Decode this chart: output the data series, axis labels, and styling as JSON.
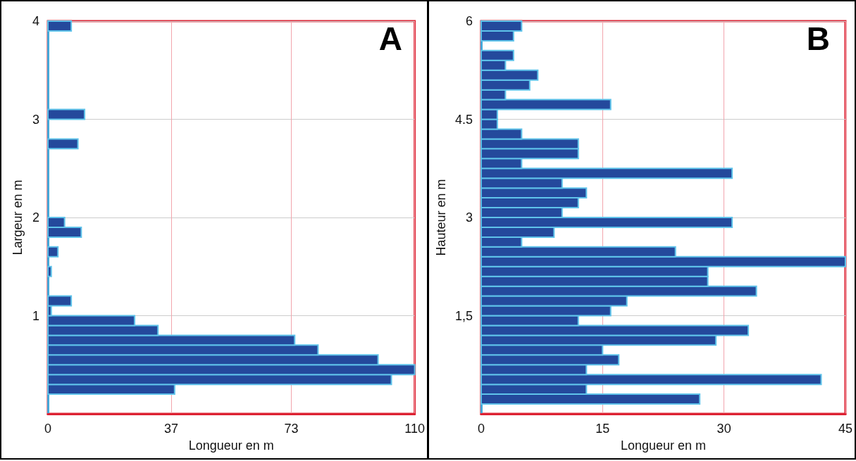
{
  "chart_data": [
    {
      "type": "histogram",
      "orientation": "horizontal",
      "xlabel": "Longueur en m",
      "ylabel": "Largeur en m",
      "annotations": [
        "A"
      ],
      "bins": [
        0,
        0.1,
        0.2,
        0.3,
        0.4,
        0.5,
        0.6,
        0.7,
        0.8,
        0.9,
        1,
        1.1,
        1.2,
        1.3,
        1.4,
        1.5,
        1.6,
        1.7,
        1.8,
        1.9,
        2,
        2.1,
        2.2,
        2.3,
        2.4,
        2.5,
        2.6,
        2.7,
        2.8,
        2.9,
        3,
        3.1,
        3.2,
        3.3,
        3.4,
        3.5,
        3.6,
        3.7,
        3.8,
        3.9,
        4
      ],
      "values": [
        0,
        0,
        38,
        103,
        110,
        99,
        81,
        74,
        33,
        26,
        1,
        7,
        0,
        0,
        1,
        0,
        3,
        0,
        10,
        5,
        0,
        0,
        0,
        0,
        0,
        0,
        0,
        9,
        0,
        0,
        11,
        0,
        0,
        0,
        0,
        0,
        0,
        0,
        0,
        7
      ],
      "color": "#24499c",
      "xlim": [
        0,
        110
      ],
      "xticks": [
        0,
        37,
        73,
        110
      ],
      "ylim": [
        0,
        4
      ],
      "yticks": [
        1,
        2,
        3,
        4
      ],
      "grid": true
    },
    {
      "type": "histogram",
      "orientation": "horizontal",
      "xlabel": "Longueur en m",
      "ylabel": "Hauteur en m",
      "annotations": [
        "B"
      ],
      "bins": [
        0,
        0.15,
        0.3,
        0.45,
        0.6,
        0.75,
        0.9,
        1.05,
        1.2,
        1.35,
        1.5,
        1.65,
        1.8,
        1.95,
        2.1,
        2.25,
        2.4,
        2.55,
        2.7,
        2.85,
        3,
        3.15,
        3.3,
        3.45,
        3.6,
        3.75,
        3.9,
        4.05,
        4.2,
        4.35,
        4.5,
        4.65,
        4.8,
        4.95,
        5.1,
        5.25,
        5.4,
        5.55,
        5.7,
        5.85,
        6
      ],
      "values": [
        0,
        27,
        13,
        42,
        13,
        17,
        15,
        29,
        33,
        12,
        16,
        18,
        34,
        28,
        28,
        45,
        24,
        5,
        9,
        31,
        10,
        12,
        13,
        10,
        31,
        5,
        12,
        12,
        5,
        2,
        2,
        16,
        3,
        6,
        7,
        3,
        4,
        0,
        4,
        5
      ],
      "color": "#24499c",
      "xlim": [
        0,
        45
      ],
      "xticks": [
        0,
        15,
        30,
        45
      ],
      "ylim": [
        0,
        6
      ],
      "yticks": [
        {
          "value": 1.5,
          "label": "1,5"
        },
        3,
        4.5,
        6
      ],
      "grid": true
    }
  ]
}
